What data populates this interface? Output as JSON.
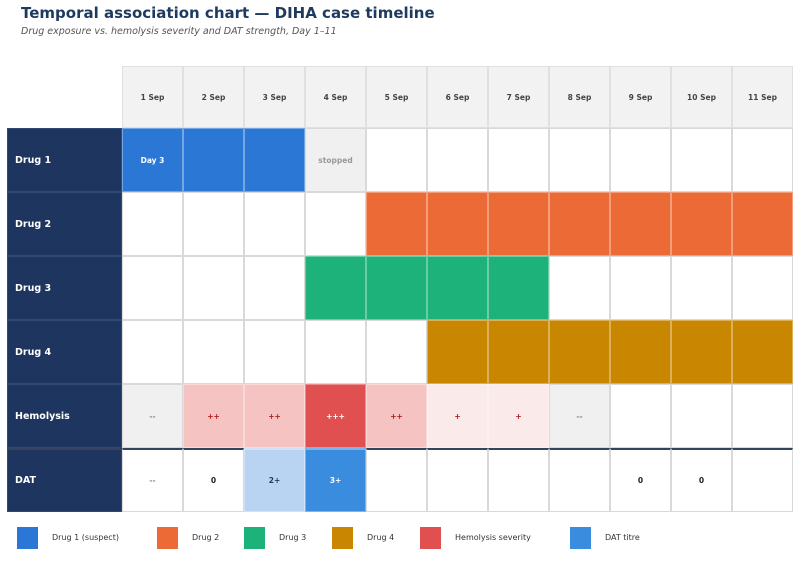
{
  "title": "Temporal association chart — DIHA case timeline",
  "subtitle": "Drug exposure vs. hemolysis severity and DAT strength, Day 1–11",
  "colors": {
    "drug1": "#2a77d6",
    "drug2": "#ec6a35",
    "drug3": "#1db27a",
    "drug4": "#c98600",
    "hemolysis": "#e05050",
    "dat": "#3a8cde",
    "row_label_bg": "#1e3560",
    "header_bg": "#f2f2f2"
  },
  "dates": [
    "1 Sep",
    "2 Sep",
    "3 Sep",
    "4 Sep",
    "5 Sep",
    "6 Sep",
    "7 Sep",
    "8 Sep",
    "9 Sep",
    "10 Sep",
    "11 Sep"
  ],
  "rows": [
    {
      "label": "Drug 1",
      "cells": [
        {
          "text": "Day 3",
          "bg": "#2a77d6",
          "fg": "#ffffff"
        },
        {
          "text": "",
          "bg": "#2a77d6",
          "fg": "#ffffff"
        },
        {
          "text": "",
          "bg": "#2a77d6",
          "fg": "#ffffff"
        },
        {
          "text": "stopped",
          "bg": "#f0f0f0",
          "fg": "#999999"
        },
        {
          "text": "",
          "bg": "#ffffff",
          "fg": "#333333"
        },
        {
          "text": "",
          "bg": "#ffffff",
          "fg": "#333333"
        },
        {
          "text": "",
          "bg": "#ffffff",
          "fg": "#333333"
        },
        {
          "text": "",
          "bg": "#ffffff",
          "fg": "#333333"
        },
        {
          "text": "",
          "bg": "#ffffff",
          "fg": "#333333"
        },
        {
          "text": "",
          "bg": "#ffffff",
          "fg": "#333333"
        },
        {
          "text": "",
          "bg": "#ffffff",
          "fg": "#333333"
        }
      ]
    },
    {
      "label": "Drug 2",
      "cells": [
        {
          "text": "",
          "bg": "#ffffff",
          "fg": "#333333"
        },
        {
          "text": "",
          "bg": "#ffffff",
          "fg": "#333333"
        },
        {
          "text": "",
          "bg": "#ffffff",
          "fg": "#333333"
        },
        {
          "text": "",
          "bg": "#ffffff",
          "fg": "#333333"
        },
        {
          "text": "",
          "bg": "#ec6a35",
          "fg": "#ffffff"
        },
        {
          "text": "",
          "bg": "#ec6a35",
          "fg": "#ffffff"
        },
        {
          "text": "",
          "bg": "#ec6a35",
          "fg": "#ffffff"
        },
        {
          "text": "",
          "bg": "#ec6a35",
          "fg": "#ffffff"
        },
        {
          "text": "",
          "bg": "#ec6a35",
          "fg": "#ffffff"
        },
        {
          "text": "",
          "bg": "#ec6a35",
          "fg": "#ffffff"
        },
        {
          "text": "",
          "bg": "#ec6a35",
          "fg": "#ffffff"
        }
      ]
    },
    {
      "label": "Drug 3",
      "cells": [
        {
          "text": "",
          "bg": "#ffffff",
          "fg": "#333333"
        },
        {
          "text": "",
          "bg": "#ffffff",
          "fg": "#333333"
        },
        {
          "text": "",
          "bg": "#ffffff",
          "fg": "#333333"
        },
        {
          "text": "",
          "bg": "#1db27a",
          "fg": "#ffffff"
        },
        {
          "text": "",
          "bg": "#1db27a",
          "fg": "#ffffff"
        },
        {
          "text": "",
          "bg": "#1db27a",
          "fg": "#ffffff"
        },
        {
          "text": "",
          "bg": "#1db27a",
          "fg": "#ffffff"
        },
        {
          "text": "",
          "bg": "#ffffff",
          "fg": "#333333"
        },
        {
          "text": "",
          "bg": "#ffffff",
          "fg": "#333333"
        },
        {
          "text": "",
          "bg": "#ffffff",
          "fg": "#333333"
        },
        {
          "text": "",
          "bg": "#ffffff",
          "fg": "#333333"
        }
      ]
    },
    {
      "label": "Drug 4",
      "cells": [
        {
          "text": "",
          "bg": "#ffffff",
          "fg": "#333333"
        },
        {
          "text": "",
          "bg": "#ffffff",
          "fg": "#333333"
        },
        {
          "text": "",
          "bg": "#ffffff",
          "fg": "#333333"
        },
        {
          "text": "",
          "bg": "#ffffff",
          "fg": "#333333"
        },
        {
          "text": "",
          "bg": "#ffffff",
          "fg": "#333333"
        },
        {
          "text": "",
          "bg": "#c98600",
          "fg": "#ffffff"
        },
        {
          "text": "",
          "bg": "#c98600",
          "fg": "#ffffff"
        },
        {
          "text": "",
          "bg": "#c98600",
          "fg": "#ffffff"
        },
        {
          "text": "",
          "bg": "#c98600",
          "fg": "#ffffff"
        },
        {
          "text": "",
          "bg": "#c98600",
          "fg": "#ffffff"
        },
        {
          "text": "",
          "bg": "#c98600",
          "fg": "#ffffff"
        }
      ]
    },
    {
      "label": "Hemolysis",
      "cells": [
        {
          "text": "--",
          "bg": "#f0f0f0",
          "fg": "#888888"
        },
        {
          "text": "++",
          "bg": "#f6c3c3",
          "fg": "#b02020"
        },
        {
          "text": "++",
          "bg": "#f6c3c3",
          "fg": "#b02020"
        },
        {
          "text": "+++",
          "bg": "#e05050",
          "fg": "#ffffff"
        },
        {
          "text": "++",
          "bg": "#f6c3c3",
          "fg": "#b02020"
        },
        {
          "text": "+",
          "bg": "#faeaea",
          "fg": "#b02020"
        },
        {
          "text": "+",
          "bg": "#faeaea",
          "fg": "#b02020"
        },
        {
          "text": "--",
          "bg": "#f0f0f0",
          "fg": "#888888"
        },
        {
          "text": "",
          "bg": "#ffffff",
          "fg": "#333333"
        },
        {
          "text": "",
          "bg": "#ffffff",
          "fg": "#333333"
        },
        {
          "text": "",
          "bg": "#ffffff",
          "fg": "#333333"
        }
      ]
    },
    {
      "label": "DAT",
      "cells": [
        {
          "text": "--",
          "bg": "#ffffff",
          "fg": "#888888"
        },
        {
          "text": "0",
          "bg": "#ffffff",
          "fg": "#222222"
        },
        {
          "text": "2+",
          "bg": "#b8d4f2",
          "fg": "#1e3a5f"
        },
        {
          "text": "3+",
          "bg": "#3a8cde",
          "fg": "#ffffff"
        },
        {
          "text": "",
          "bg": "#ffffff",
          "fg": "#333333"
        },
        {
          "text": "",
          "bg": "#ffffff",
          "fg": "#333333"
        },
        {
          "text": "",
          "bg": "#ffffff",
          "fg": "#333333"
        },
        {
          "text": "",
          "bg": "#ffffff",
          "fg": "#333333"
        },
        {
          "text": "0",
          "bg": "#ffffff",
          "fg": "#222222"
        },
        {
          "text": "0",
          "bg": "#ffffff",
          "fg": "#222222"
        },
        {
          "text": "",
          "bg": "#ffffff",
          "fg": "#333333"
        }
      ]
    }
  ],
  "legend": [
    {
      "label": "Drug 1 (suspect)",
      "color": "#2a77d6"
    },
    {
      "label": "Drug 2",
      "color": "#ec6a35"
    },
    {
      "label": "Drug 3",
      "color": "#1db27a"
    },
    {
      "label": "Drug 4",
      "color": "#c98600"
    },
    {
      "label": "Hemolysis severity",
      "color": "#e05050"
    },
    {
      "label": "DAT titre",
      "color": "#3a8cde"
    }
  ]
}
